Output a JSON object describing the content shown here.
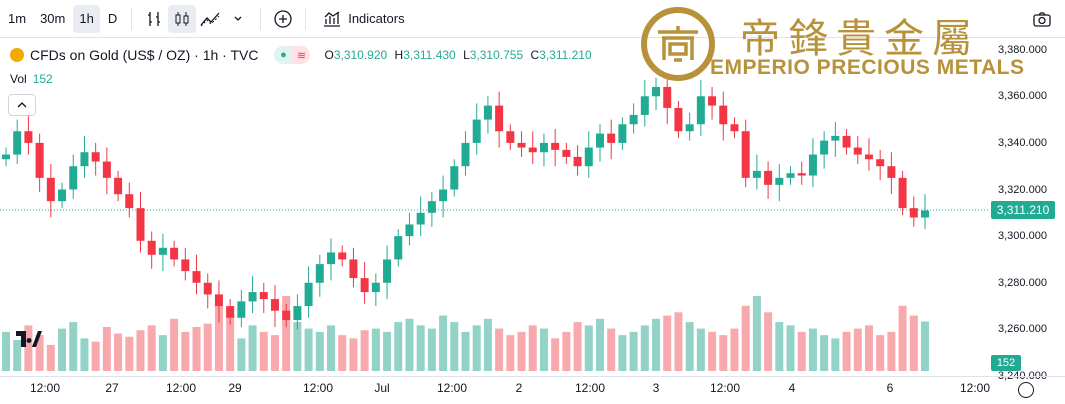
{
  "toolbar": {
    "intervals": [
      "1m",
      "30m",
      "1h",
      "D"
    ],
    "active_interval": "1h",
    "indicators_label": "Indicators"
  },
  "legend": {
    "symbol": "CFDs on Gold (US$ / OZ) · 1h · TVC",
    "open_label": "O",
    "open": "3,310.920",
    "high_label": "H",
    "high": "3,311.430",
    "low_label": "L",
    "low": "3,310.755",
    "close_label": "C",
    "close": "3,311.210"
  },
  "volume": {
    "label": "Vol",
    "value": "152"
  },
  "watermark": {
    "cn": "帝鋒貴金屬",
    "en": "EMPERIO PRECIOUS METALS"
  },
  "price_axis": {
    "ticks": [
      "3,380.000",
      "3,360.000",
      "3,340.000",
      "3,320.000",
      "3,300.000",
      "3,280.000",
      "3,260.000",
      "3,240.000"
    ],
    "tick_values": [
      3380,
      3360,
      3340,
      3320,
      3300,
      3280,
      3260,
      3240
    ],
    "last_price": "3,311.210",
    "last_price_value": 3311.21,
    "last_volume": "152"
  },
  "time_axis": [
    "12:00",
    "27",
    "12:00",
    "29",
    "12:00",
    "Jul",
    "12:00",
    "2",
    "12:00",
    "3",
    "12:00",
    "4",
    "6",
    "12:00"
  ],
  "colors": {
    "up": "#22ab94",
    "down": "#f23645",
    "up_vol": "#93d2c7",
    "down_vol": "#f7a9ae",
    "brand": "#b8923a"
  },
  "chart_data": {
    "type": "candlestick",
    "ylim": [
      3240,
      3385
    ],
    "close_series": [
      3335,
      3345,
      3340,
      3325,
      3315,
      3320,
      3330,
      3336,
      3332,
      3325,
      3318,
      3312,
      3298,
      3292,
      3295,
      3290,
      3285,
      3280,
      3275,
      3270,
      3265,
      3272,
      3276,
      3273,
      3268,
      3264,
      3270,
      3280,
      3288,
      3293,
      3290,
      3282,
      3276,
      3280,
      3290,
      3300,
      3305,
      3310,
      3315,
      3320,
      3330,
      3340,
      3350,
      3356,
      3345,
      3340,
      3338,
      3336,
      3340,
      3337,
      3334,
      3330,
      3338,
      3344,
      3340,
      3348,
      3352,
      3360,
      3364,
      3355,
      3345,
      3348,
      3360,
      3356,
      3348,
      3345,
      3325,
      3328,
      3322,
      3325,
      3327,
      3326,
      3335,
      3341,
      3343,
      3338,
      3335,
      3333,
      3330,
      3325,
      3312,
      3308,
      3311
    ],
    "volume_series": [
      120,
      95,
      140,
      110,
      80,
      130,
      150,
      100,
      90,
      135,
      115,
      105,
      125,
      140,
      110,
      160,
      120,
      135,
      145,
      200,
      170,
      100,
      140,
      120,
      110,
      230,
      150,
      130,
      120,
      140,
      110,
      100,
      125,
      130,
      120,
      150,
      160,
      140,
      130,
      170,
      150,
      120,
      140,
      160,
      130,
      110,
      120,
      140,
      130,
      100,
      120,
      150,
      140,
      160,
      130,
      110,
      120,
      140,
      160,
      170,
      180,
      150,
      130,
      120,
      110,
      130,
      200,
      230,
      180,
      150,
      140,
      120,
      130,
      110,
      100,
      120,
      130,
      140,
      110,
      120,
      200,
      170,
      152
    ]
  }
}
